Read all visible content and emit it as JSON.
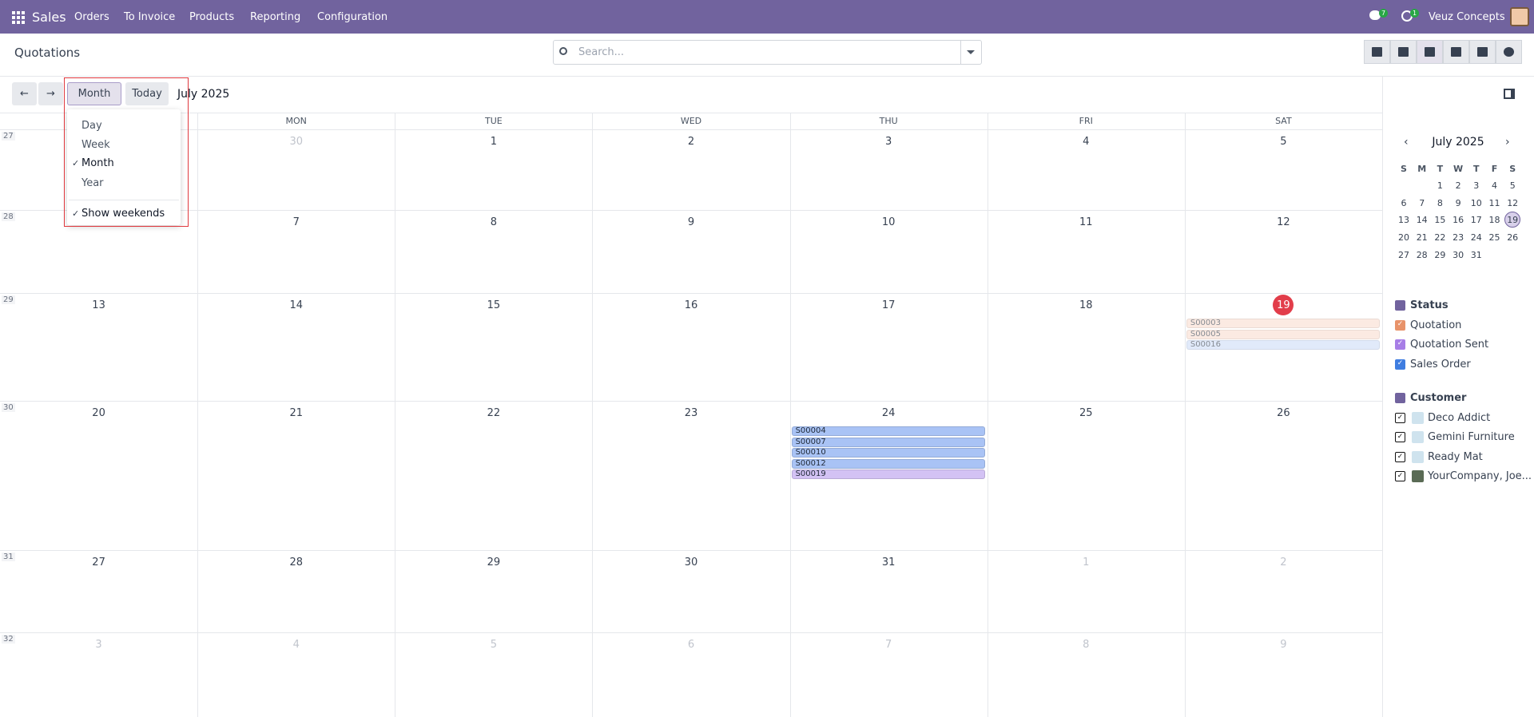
{
  "navbar": {
    "app": "Sales",
    "menus": [
      "Orders",
      "To Invoice",
      "Products",
      "Reporting",
      "Configuration"
    ],
    "messages_badge": "7",
    "activities_badge": "1",
    "company": "Veuz Concepts"
  },
  "control_panel": {
    "title": "Quotations",
    "search_placeholder": "Search..."
  },
  "toolbar": {
    "scale": "Month",
    "today": "Today",
    "period": "July 2025"
  },
  "scale_menu": {
    "items": [
      {
        "label": "Day",
        "checked": false
      },
      {
        "label": "Week",
        "checked": false
      },
      {
        "label": "Month",
        "checked": true
      },
      {
        "label": "Year",
        "checked": false
      }
    ],
    "show_weekends": {
      "label": "Show weekends",
      "checked": true
    }
  },
  "calendar": {
    "weekdays": [
      null,
      "MON",
      "TUE",
      "WED",
      "THU",
      "FRI",
      "SAT"
    ],
    "weeks": [
      {
        "week": "27",
        "days": [
          null,
          {
            "label": "30",
            "outside": true
          },
          {
            "label": "1"
          },
          {
            "label": "2"
          },
          {
            "label": "3"
          },
          {
            "label": "4"
          },
          {
            "label": "5"
          }
        ]
      },
      {
        "week": "28",
        "days": [
          null,
          {
            "label": "7"
          },
          {
            "label": "8"
          },
          {
            "label": "9"
          },
          {
            "label": "10"
          },
          {
            "label": "11"
          },
          {
            "label": "12"
          }
        ]
      },
      {
        "week": "29",
        "days": [
          {
            "label": "13"
          },
          {
            "label": "14"
          },
          {
            "label": "15"
          },
          {
            "label": "16"
          },
          {
            "label": "17"
          },
          {
            "label": "18"
          },
          {
            "label": "19",
            "today": true,
            "events": [
              {
                "label": "S00003",
                "color": "#f9d9cb",
                "faded": true
              },
              {
                "label": "S00005",
                "color": "#f9d9cb",
                "faded": true
              },
              {
                "label": "S00016",
                "color": "#c9d9f7",
                "faded": true
              }
            ]
          }
        ]
      },
      {
        "week": "30",
        "days": [
          {
            "label": "20"
          },
          {
            "label": "21"
          },
          {
            "label": "22"
          },
          {
            "label": "23"
          },
          {
            "label": "24",
            "events": [
              {
                "label": "S00004",
                "color": "#a9c3f5"
              },
              {
                "label": "S00007",
                "color": "#a9c3f5"
              },
              {
                "label": "S00010",
                "color": "#a9c3f5"
              },
              {
                "label": "S00012",
                "color": "#a9c3f5"
              },
              {
                "label": "S00019",
                "color": "#d3c2f4"
              }
            ]
          },
          {
            "label": "25"
          },
          {
            "label": "26"
          }
        ]
      },
      {
        "week": "31",
        "days": [
          {
            "label": "27"
          },
          {
            "label": "28"
          },
          {
            "label": "29"
          },
          {
            "label": "30"
          },
          {
            "label": "31"
          },
          {
            "label": "1",
            "outside": true
          },
          {
            "label": "2",
            "outside": true
          }
        ]
      },
      {
        "week": "32",
        "days": [
          {
            "label": "3",
            "outside": true
          },
          {
            "label": "4",
            "outside": true
          },
          {
            "label": "5",
            "outside": true
          },
          {
            "label": "6",
            "outside": true
          },
          {
            "label": "7",
            "outside": true
          },
          {
            "label": "8",
            "outside": true
          },
          {
            "label": "9",
            "outside": true
          }
        ]
      }
    ]
  },
  "mini_calendar": {
    "title": "July 2025",
    "weekdays": [
      "S",
      "M",
      "T",
      "W",
      "T",
      "F",
      "S"
    ],
    "weeks": [
      [
        null,
        null,
        {
          "label": "1"
        },
        {
          "label": "2"
        },
        {
          "label": "3"
        },
        {
          "label": "4"
        },
        {
          "label": "5"
        }
      ],
      [
        {
          "label": "6"
        },
        {
          "label": "7"
        },
        {
          "label": "8"
        },
        {
          "label": "9"
        },
        {
          "label": "10"
        },
        {
          "label": "11"
        },
        {
          "label": "12"
        }
      ],
      [
        {
          "label": "13"
        },
        {
          "label": "14"
        },
        {
          "label": "15"
        },
        {
          "label": "16"
        },
        {
          "label": "17"
        },
        {
          "label": "18"
        },
        {
          "label": "19",
          "today": true
        }
      ],
      [
        {
          "label": "20"
        },
        {
          "label": "21"
        },
        {
          "label": "22"
        },
        {
          "label": "23"
        },
        {
          "label": "24"
        },
        {
          "label": "25"
        },
        {
          "label": "26"
        }
      ],
      [
        {
          "label": "27"
        },
        {
          "label": "28"
        },
        {
          "label": "29"
        },
        {
          "label": "30"
        },
        {
          "label": "31"
        },
        null,
        null
      ]
    ]
  },
  "filters": [
    {
      "title": "Status",
      "items": [
        {
          "label": "Quotation",
          "color": "#e8936a"
        },
        {
          "label": "Quotation Sent",
          "color": "#a77ee6"
        },
        {
          "label": "Sales Order",
          "color": "#3f7de0"
        }
      ]
    },
    {
      "title": "Customer",
      "items": [
        {
          "label": "Deco Addict",
          "color": "#ffffff"
        },
        {
          "label": "Gemini Furniture",
          "color": "#ffffff"
        },
        {
          "label": "Ready Mat",
          "color": "#ffffff"
        },
        {
          "label": "YourCompany, Joe...",
          "color": "#ffffff"
        }
      ]
    }
  ]
}
